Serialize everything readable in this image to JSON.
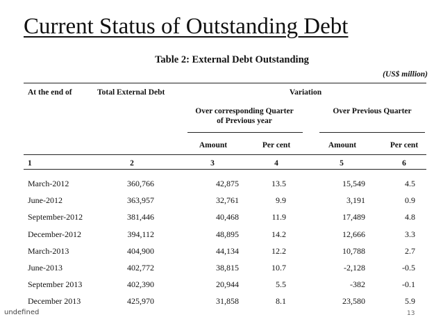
{
  "slide_title": "Current Status of Outstanding Debt",
  "table": {
    "caption": "Table 2: External Debt Outstanding",
    "units": "(US$ million)",
    "header": {
      "col_period": "At the end of",
      "col_total": "Total External Debt",
      "col_variation": "Variation",
      "group_yoy": [
        "Over corresponding Quarter",
        "of Previous year"
      ],
      "group_qoq": "Over Previous Quarter",
      "amount": "Amount",
      "percent": "Per cent"
    },
    "col_numbers": [
      "1",
      "2",
      "3",
      "4",
      "5",
      "6"
    ],
    "rows": [
      [
        "March-2012",
        "360,766",
        "42,875",
        "13.5",
        "15,549",
        "4.5"
      ],
      [
        "June-2012",
        "363,957",
        "32,761",
        "9.9",
        "3,191",
        "0.9"
      ],
      [
        "September-2012",
        "381,446",
        "40,468",
        "11.9",
        "17,489",
        "4.8"
      ],
      [
        "December-2012",
        "394,112",
        "48,895",
        "14.2",
        "12,666",
        "3.3"
      ],
      [
        "March-2013",
        "404,900",
        "44,134",
        "12.2",
        "10,788",
        "2.7"
      ],
      [
        "June-2013",
        "402,772",
        "38,815",
        "10.7",
        "-2,128",
        "-0.5"
      ],
      [
        "September 2013",
        "402,390",
        "20,944",
        "5.5",
        "-382",
        "-0.1"
      ],
      [
        "December 2013",
        "425,970",
        "31,858",
        "8.1",
        "23,580",
        "5.9"
      ]
    ]
  },
  "footer_tag": "undefined",
  "page_number": "13"
}
